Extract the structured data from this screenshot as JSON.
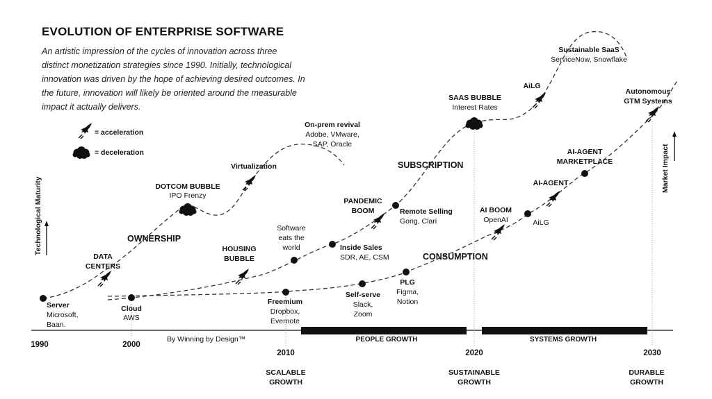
{
  "header": {
    "title": "EVOLUTION OF ENTERPRISE SOFTWARE",
    "subtitle": "An artistic impression of the cycles of innovation across three distinct monetization strategies since 1990. Initially, technological innovation was driven by the hope of achieving desired outcomes. In the future, innovation will likely be oriented around the measurable impact it actually delivers."
  },
  "legend": {
    "acceleration": "= acceleration",
    "deceleration": "= deceleration",
    "acceleration_icon": "rocket-icon",
    "deceleration_icon": "cloud-icon"
  },
  "axes": {
    "y_left": "Technological Maturity",
    "y_right": "Market Impact",
    "years": [
      "1990",
      "2000",
      "2010",
      "2020",
      "2030"
    ],
    "credit": "By Winning by Design™",
    "bars": [
      "PEOPLE GROWTH",
      "SYSTEMS GROWTH"
    ],
    "growth_labels": [
      [
        "SCALABLE",
        "GROWTH"
      ],
      [
        "SUSTAINABLE",
        "GROWTH"
      ],
      [
        "DURABLE",
        "GROWTH"
      ]
    ]
  },
  "eras": [
    "OWNERSHIP",
    "SUBSCRIPTION",
    "CONSUMPTION"
  ],
  "labels": {
    "server": [
      "Server",
      "Microsoft,",
      "Baan."
    ],
    "data_centers": [
      "DATA",
      "CENTERS"
    ],
    "dotcom": [
      "DOTCOM BUBBLE",
      "IPO Frenzy"
    ],
    "virtualization": "Virtualization",
    "onprem": [
      "On-prem revival",
      "Adobe, VMware,",
      "SAP, Oracle"
    ],
    "cloud": [
      "Cloud",
      "AWS"
    ],
    "housing": [
      "HOUSING",
      "BUBBLE"
    ],
    "software": [
      "Software",
      "eats the",
      "world"
    ],
    "inside_sales": [
      "Inside Sales",
      "SDR, AE, CSM"
    ],
    "pandemic": [
      "PANDEMIC",
      "BOOM"
    ],
    "remote": [
      "Remote Selling",
      "Gong, Clari"
    ],
    "saas_bubble": [
      "SAAS BUBBLE",
      "Interest Rates"
    ],
    "ailg_top": "AiLG",
    "sustainable_saas": [
      "Sustainable SaaS",
      "ServiceNow, Snowflake"
    ],
    "freemium": [
      "Freemium",
      "Dropbox,",
      "Evernote"
    ],
    "selfserve": [
      "Self-serve",
      "Slack,",
      "Zoom"
    ],
    "plg": [
      "PLG",
      "Figma,",
      "Notion"
    ],
    "ai_boom": [
      "AI BOOM",
      "OpenAI"
    ],
    "ailg": "AiLG",
    "ai_agent": "AI-AGENT",
    "marketplace": [
      "AI-AGENT",
      "MARKETPLACE"
    ],
    "autonomous": [
      "Autonomous",
      "GTM Systems"
    ]
  }
}
